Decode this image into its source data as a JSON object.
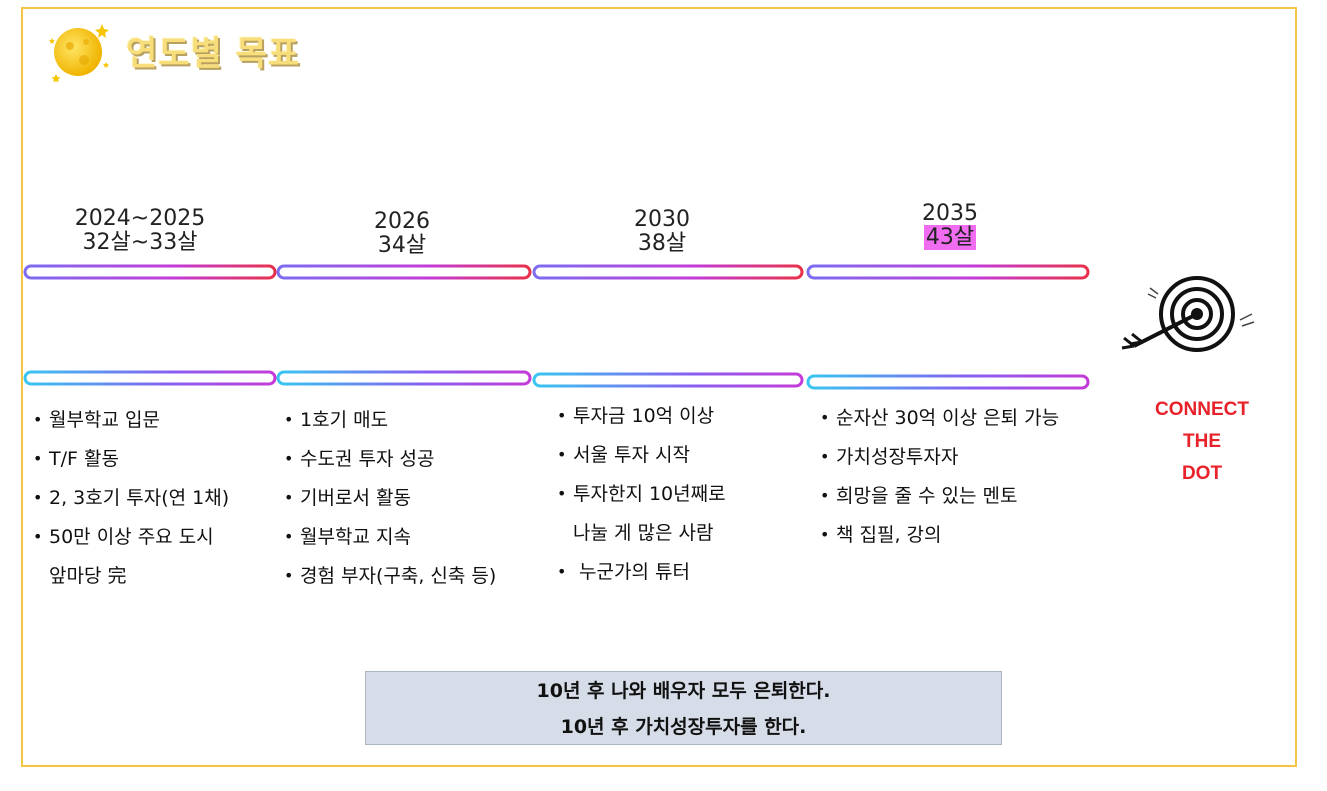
{
  "title": "연도별 목표",
  "periods": [
    {
      "year": "2024~2025",
      "age": "32살~33살",
      "age_highlight": false,
      "goals": [
        "월부학교 입문",
        "T/F 활동",
        "2, 3호기 투자(연 1채)",
        "50만 이상 주요 도시",
        "앞마당 完"
      ]
    },
    {
      "year": "2026",
      "age": "34살",
      "age_highlight": false,
      "goals": [
        "1호기 매도",
        "수도권 투자 성공",
        "기버로서 활동",
        "월부학교 지속",
        "경험 부자(구축, 신축 등)"
      ]
    },
    {
      "year": "2030",
      "age": "38살",
      "age_highlight": false,
      "goals": [
        "투자금 10억 이상",
        "서울 투자 시작",
        "투자한지 10년째로",
        "나눌 게 많은 사람",
        "누군가의 튜터"
      ]
    },
    {
      "year": "2035",
      "age": "43살",
      "age_highlight": true,
      "goals": [
        "순자산 30억 이상 은퇴 가능",
        "가치성장투자자",
        "희망을 줄 수 있는 멘토",
        "책 집필, 강의"
      ]
    }
  ],
  "connect_text": [
    "CONNECT",
    "THE",
    "DOT"
  ],
  "summary": [
    "10년 후 나와 배우자 모두 은퇴한다.",
    "10년 후 가치성장투자를 한다."
  ],
  "colors": {
    "frame": "#f4c542",
    "highlight": "#f06cf0",
    "connect": "#e8222a",
    "summary_bg": "#d6dde8"
  },
  "icons": [
    "moon-stars-icon",
    "target-arrow-icon"
  ]
}
